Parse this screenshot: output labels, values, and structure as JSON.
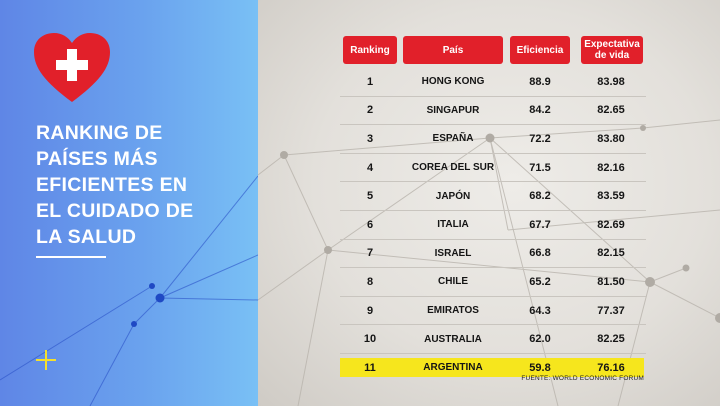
{
  "sidebar": {
    "title_lines": [
      "RANKING DE",
      "PAÍSES MÁS",
      "EFICIENTES EN",
      "EL CUIDADO DE",
      "LA SALUD"
    ],
    "heart_color": "#e1202a",
    "plus_color": "#f5e02c"
  },
  "table": {
    "headers": {
      "ranking": "Ranking",
      "pais": "País",
      "eficiencia": "Eficiencia",
      "expectativa_line1": "Expectativa",
      "expectativa_line2": "de vida"
    },
    "header_color": "#e1202a",
    "highlight_color": "#f6e61d",
    "rows": [
      {
        "rank": "1",
        "pais": "HONG KONG",
        "eficiencia": "88.9",
        "expectativa": "83.98"
      },
      {
        "rank": "2",
        "pais": "SINGAPUR",
        "eficiencia": "84.2",
        "expectativa": "82.65"
      },
      {
        "rank": "3",
        "pais": "ESPAÑA",
        "eficiencia": "72.2",
        "expectativa": "83.80"
      },
      {
        "rank": "4",
        "pais": "COREA DEL SUR",
        "eficiencia": "71.5",
        "expectativa": "82.16"
      },
      {
        "rank": "5",
        "pais": "JAPÓN",
        "eficiencia": "68.2",
        "expectativa": "83.59"
      },
      {
        "rank": "6",
        "pais": "ITALIA",
        "eficiencia": "67.7",
        "expectativa": "82.69"
      },
      {
        "rank": "7",
        "pais": "ISRAEL",
        "eficiencia": "66.8",
        "expectativa": "82.15"
      },
      {
        "rank": "8",
        "pais": "CHILE",
        "eficiencia": "65.2",
        "expectativa": "81.50"
      },
      {
        "rank": "9",
        "pais": "EMIRATOS",
        "eficiencia": "64.3",
        "expectativa": "77.37"
      },
      {
        "rank": "10",
        "pais": "AUSTRALIA",
        "eficiencia": "62.0",
        "expectativa": "82.25"
      },
      {
        "rank": "11",
        "pais": "ARGENTINA",
        "eficiencia": "59.8",
        "expectativa": "76.16",
        "highlight": true
      }
    ]
  },
  "source": "FUENTE: WORLD ECONOMIC FORUM"
}
